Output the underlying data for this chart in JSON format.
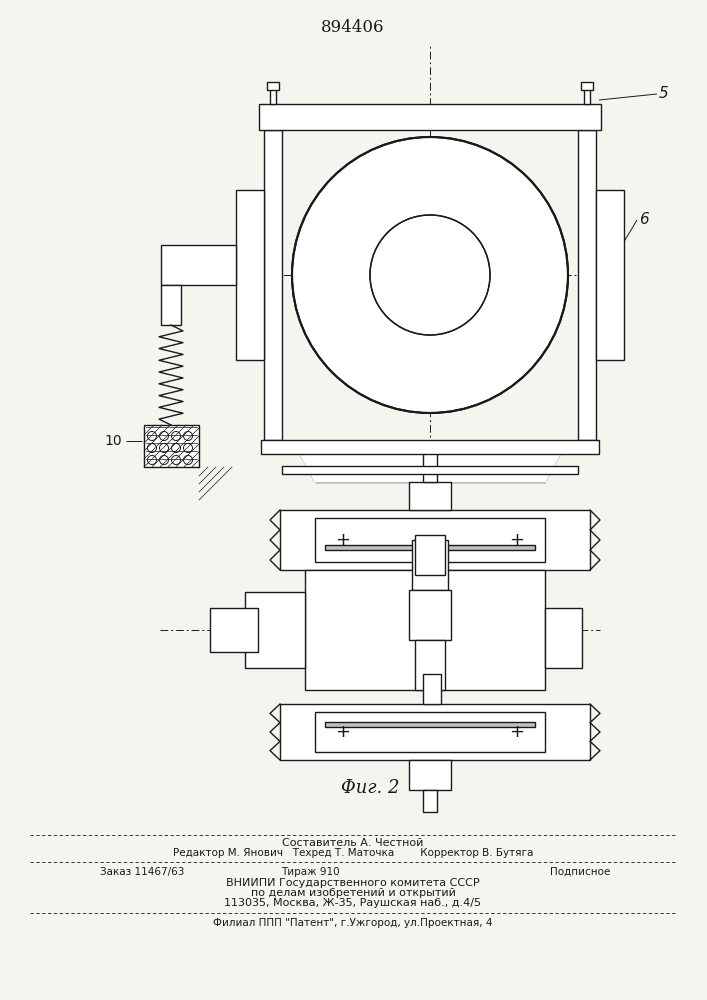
{
  "patent_number": "894406",
  "fig_label": "Φиг. 2",
  "label_5": "5",
  "label_6": "6",
  "label_10": "10",
  "line_color": "#1a1a1a",
  "bg_color": "#f5f5f0",
  "footer_lines": [
    "Составитель А. Честной",
    "Редактор М. Янович   Техред Т. Маточка        Корректор В. Бутяга",
    "Заказ 11467/63     Тираж 910             Подписное",
    "ВНИИПИ Государственного комитета СССР",
    "по делам изобретений и открытий",
    "113035, Москва, Ж-35, Раушская наб., д.4/5",
    "Филиал ППП \"Патент\", г.Ужгород, ул.Проектная, 4"
  ]
}
